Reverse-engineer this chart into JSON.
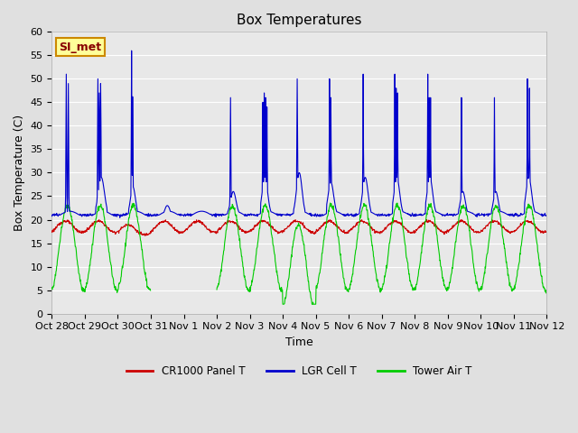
{
  "title": "Box Temperatures",
  "xlabel": "Time",
  "ylabel": "Box Temperature (C)",
  "ylim": [
    0,
    60
  ],
  "yticks": [
    0,
    5,
    10,
    15,
    20,
    25,
    30,
    35,
    40,
    45,
    50,
    55,
    60
  ],
  "background_color": "#e0e0e0",
  "plot_bg_color": "#e8e8e8",
  "line_colors": {
    "panel": "#cc0000",
    "lgr": "#0000cc",
    "tower": "#00cc00"
  },
  "legend_labels": [
    "CR1000 Panel T",
    "LGR Cell T",
    "Tower Air T"
  ],
  "annotation_text": "SI_met",
  "annotation_bg": "#ffff99",
  "annotation_border": "#cc8800",
  "annotation_text_color": "#880000",
  "total_days": 15,
  "tick_label_fontsize": 8,
  "title_fontsize": 11,
  "day_labels": [
    "Oct 28",
    "Oct 29",
    "Oct 30",
    "Oct 31",
    "Nov 1",
    "Nov 2",
    "Nov 3",
    "Nov 4",
    "Nov 5",
    "Nov 6",
    "Nov 7",
    "Nov 8",
    "Nov 9",
    "Nov 10",
    "Nov 11",
    "Nov 12"
  ]
}
